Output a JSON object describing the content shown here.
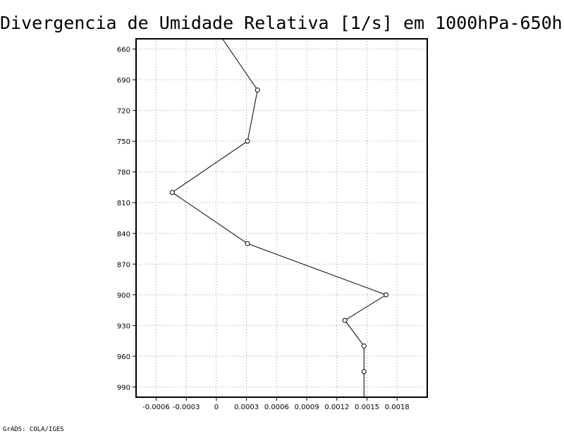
{
  "chart_data": {
    "type": "line",
    "title": "Divergencia de Umidade Relativa [1/s] em 1000hPa-650hPa",
    "xlabel": "",
    "ylabel": "",
    "xlim": [
      -0.0008,
      0.0021
    ],
    "ylim": [
      1000,
      650
    ],
    "y_inverted": true,
    "x_ticks": [
      -0.0006,
      -0.0003,
      0,
      0.0003,
      0.0006,
      0.0009,
      0.0012,
      0.0015,
      0.0018
    ],
    "x_tick_labels": [
      "-0.0006",
      "-0.0003",
      "0",
      "0.0003",
      "0.0006",
      "0.0009",
      "0.0012",
      "0.0015",
      "0.0018"
    ],
    "y_ticks": [
      660,
      690,
      720,
      750,
      780,
      810,
      840,
      870,
      900,
      930,
      960,
      990
    ],
    "y_tick_labels": [
      "660",
      "690",
      "720",
      "750",
      "780",
      "810",
      "840",
      "870",
      "900",
      "930",
      "960",
      "990"
    ],
    "grid": true,
    "series": [
      {
        "points": [
          {
            "x": 6e-05,
            "y": 650
          },
          {
            "x": 0.00041,
            "y": 700
          },
          {
            "x": 0.00031,
            "y": 750
          },
          {
            "x": -0.00044,
            "y": 800
          },
          {
            "x": 0.00031,
            "y": 850
          },
          {
            "x": 0.00169,
            "y": 900
          },
          {
            "x": 0.00128,
            "y": 925
          },
          {
            "x": 0.00147,
            "y": 950
          },
          {
            "x": 0.00147,
            "y": 975
          },
          {
            "x": 0.00147,
            "y": 1000
          }
        ],
        "color": "#000000"
      }
    ]
  },
  "footer": "GrADS: COLA/IGES"
}
